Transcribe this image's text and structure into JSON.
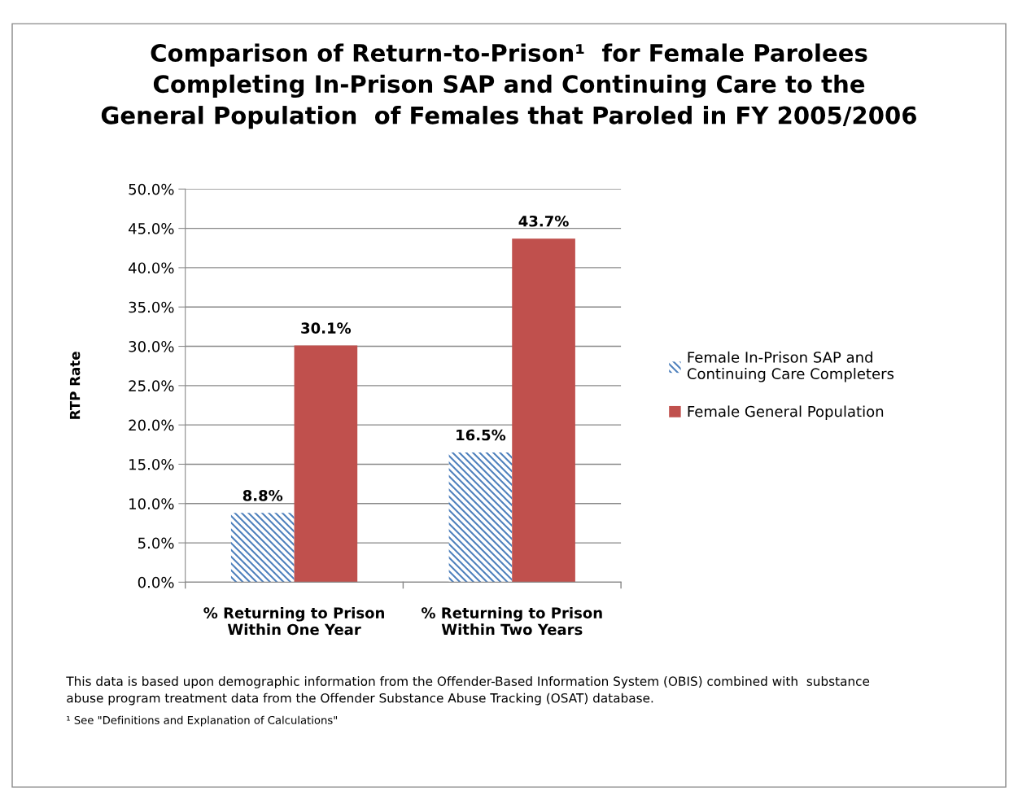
{
  "chart_data": {
    "type": "bar",
    "title": "Comparison of Return-to-Prison¹  for Female Parolees\nCompleting In-Prison SAP and Continuing Care to the\nGeneral Population  of Females that Paroled in FY 2005/2006",
    "ylabel": "RTP Rate",
    "categories": [
      "% Returning to Prison\nWithin One Year",
      "% Returning to Prison\nWithin Two Years"
    ],
    "series": [
      {
        "name": "Female In-Prison SAP and\nContinuing Care Completers",
        "color": "#4f81bd",
        "values": [
          8.8,
          16.5
        ],
        "value_labels": [
          "8.8%",
          "16.5%"
        ]
      },
      {
        "name": "Female General Population",
        "color": "#c0504d",
        "values": [
          30.1,
          43.7
        ],
        "value_labels": [
          "30.1%",
          "43.7%"
        ]
      }
    ],
    "ylim": [
      0,
      50
    ],
    "yticks": [
      {
        "value": 0,
        "label": "0.0%"
      },
      {
        "value": 5,
        "label": "5.0%"
      },
      {
        "value": 10,
        "label": "10.0%"
      },
      {
        "value": 15,
        "label": "15.0%"
      },
      {
        "value": 20,
        "label": "20.0%"
      },
      {
        "value": 25,
        "label": "25.0%"
      },
      {
        "value": 30,
        "label": "30.0%"
      },
      {
        "value": 35,
        "label": "35.0%"
      },
      {
        "value": 40,
        "label": "40.0%"
      },
      {
        "value": 45,
        "label": "45.0%"
      },
      {
        "value": 50,
        "label": "50.0%"
      }
    ],
    "grid": "y",
    "legend": "right",
    "annotations": [
      "This data is based upon demographic information from the Offender-Based Information System (OBIS) combined with  substance\nabuse program treatment data from the Offender Substance Abuse Tracking (OSAT) database.",
      "¹ See \"Definitions and Explanation of Calculations\""
    ]
  }
}
